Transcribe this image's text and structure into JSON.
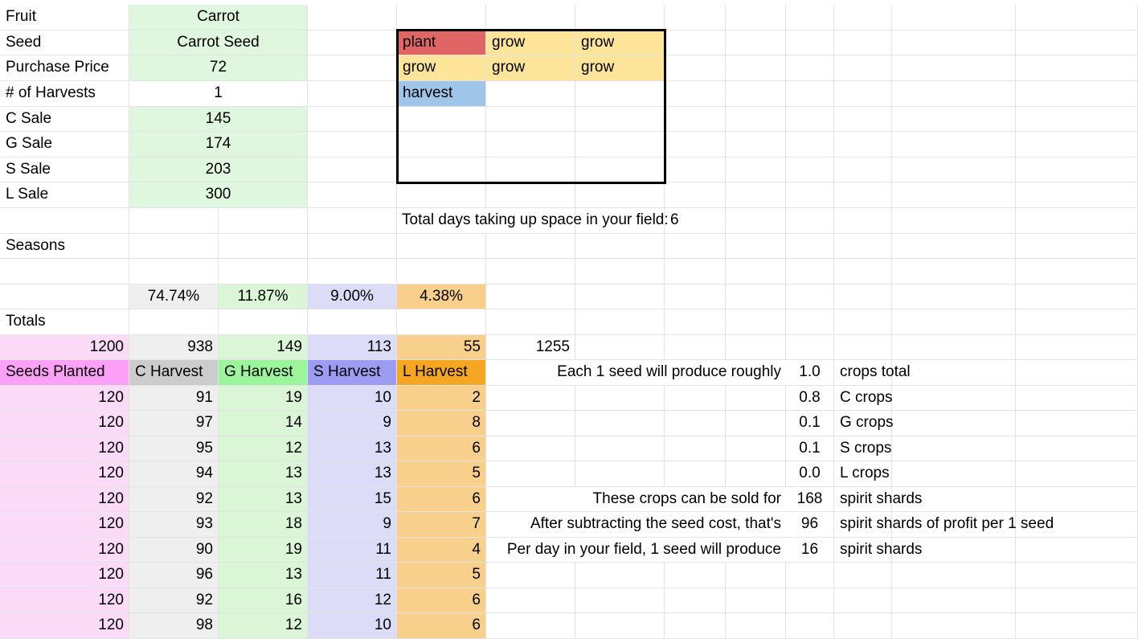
{
  "colors": {
    "input_green": "#e0f7df",
    "c_gray": "#efefef",
    "g_green": "#daf6d6",
    "s_purple": "#dcdcf8",
    "l_orange": "#f8d08b",
    "seeds_pink": "#fcdbf8",
    "header_c": "#cccccc",
    "header_g": "#9bf59b",
    "header_s": "#9c9cf2",
    "header_l": "#f5a623",
    "header_seeds": "#fca0f8",
    "plant_red": "#e06666",
    "grow_yellow": "#ffe599",
    "harvest_blue": "#9fc5e8",
    "box_border": "#000000",
    "gridline": "#e2e3e3"
  },
  "crop": {
    "fruit_label": "Fruit",
    "fruit": "Carrot",
    "seed_label": "Seed",
    "seed": "Carrot Seed",
    "purchase_label": "Purchase Price",
    "purchase": "72",
    "harvests_label": "# of Harvests",
    "harvests": "1",
    "c_sale_label": "C Sale",
    "c_sale": "145",
    "g_sale_label": "G Sale",
    "g_sale": "174",
    "s_sale_label": "S Sale",
    "s_sale": "203",
    "l_sale_label": "L Sale",
    "l_sale": "300"
  },
  "timeline": {
    "r1": [
      "plant",
      "grow",
      "grow"
    ],
    "r2": [
      "grow",
      "grow",
      "grow"
    ],
    "r3": [
      "harvest"
    ]
  },
  "field_days": {
    "label": "Total days taking up space in your field:",
    "value": "6"
  },
  "seasons_label": "Seasons",
  "percentages": {
    "c": "74.74%",
    "g": "11.87%",
    "s": "9.00%",
    "l": "4.38%"
  },
  "totals": {
    "label": "Totals",
    "seeds": "1200",
    "c": "938",
    "g": "149",
    "s": "113",
    "l": "55",
    "sum": "1255"
  },
  "headers": {
    "seeds": "Seeds Planted",
    "c": "C Harvest",
    "g": "G Harvest",
    "s": "S Harvest",
    "l": "L Harvest"
  },
  "rows": [
    {
      "seeds": "120",
      "c": "91",
      "g": "19",
      "s": "10",
      "l": "2"
    },
    {
      "seeds": "120",
      "c": "97",
      "g": "14",
      "s": "9",
      "l": "8"
    },
    {
      "seeds": "120",
      "c": "95",
      "g": "12",
      "s": "13",
      "l": "6"
    },
    {
      "seeds": "120",
      "c": "94",
      "g": "13",
      "s": "13",
      "l": "5"
    },
    {
      "seeds": "120",
      "c": "92",
      "g": "13",
      "s": "15",
      "l": "6"
    },
    {
      "seeds": "120",
      "c": "93",
      "g": "18",
      "s": "9",
      "l": "7"
    },
    {
      "seeds": "120",
      "c": "90",
      "g": "19",
      "s": "11",
      "l": "4"
    },
    {
      "seeds": "120",
      "c": "96",
      "g": "13",
      "s": "11",
      "l": "5"
    },
    {
      "seeds": "120",
      "c": "92",
      "g": "16",
      "s": "12",
      "l": "6"
    },
    {
      "seeds": "120",
      "c": "98",
      "g": "12",
      "s": "10",
      "l": "6"
    }
  ],
  "summary": [
    {
      "label": "Each 1 seed will produce roughly",
      "value": "1.0",
      "unit": "crops total"
    },
    {
      "label": "",
      "value": "0.8",
      "unit": "C crops"
    },
    {
      "label": "",
      "value": "0.1",
      "unit": "G crops"
    },
    {
      "label": "",
      "value": "0.1",
      "unit": "S crops"
    },
    {
      "label": "",
      "value": "0.0",
      "unit": "L crops"
    },
    {
      "label": "These crops can be sold for",
      "value": "168",
      "unit": "spirit shards"
    },
    {
      "label": "After subtracting the seed cost, that's",
      "value": "96",
      "unit": "spirit shards of profit per 1 seed"
    },
    {
      "label": "Per day in your field, 1 seed will produce",
      "value": "16",
      "unit": "spirit shards"
    }
  ]
}
